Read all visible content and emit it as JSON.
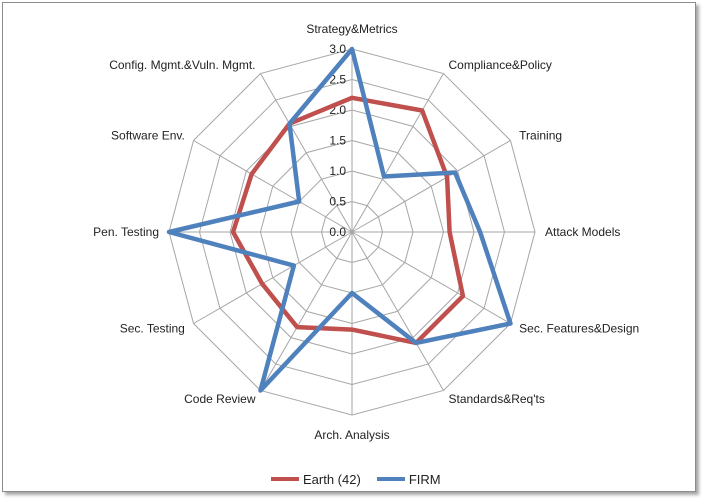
{
  "chart_data": {
    "type": "radar",
    "categories": [
      "Strategy&Metrics",
      "Compliance&Policy",
      "Training",
      "Attack Models",
      "Sec. Features&Design",
      "Standards&Req'ts",
      "Arch. Analysis",
      "Code Review",
      "Sec. Testing",
      "Pen. Testing",
      "Software Env.",
      "Config. Mgmt.&Vuln. Mgmt."
    ],
    "rlim": [
      0,
      3.0
    ],
    "rticks": [
      "0.0",
      "0.5",
      "1.0",
      "1.5",
      "2.0",
      "2.5",
      "3.0"
    ],
    "grid": true,
    "legend_position": "bottom",
    "series": [
      {
        "name": "Earth (42)",
        "color": "#c0504d",
        "values": [
          2.2,
          2.3,
          1.8,
          1.6,
          2.1,
          2.1,
          1.6,
          1.8,
          1.7,
          1.95,
          1.9,
          2.05
        ]
      },
      {
        "name": "FIRM",
        "color": "#4f81bd",
        "values": [
          3.0,
          1.05,
          1.95,
          2.1,
          3.0,
          2.1,
          1.0,
          3.0,
          1.1,
          3.0,
          1.0,
          2.05
        ]
      }
    ]
  }
}
